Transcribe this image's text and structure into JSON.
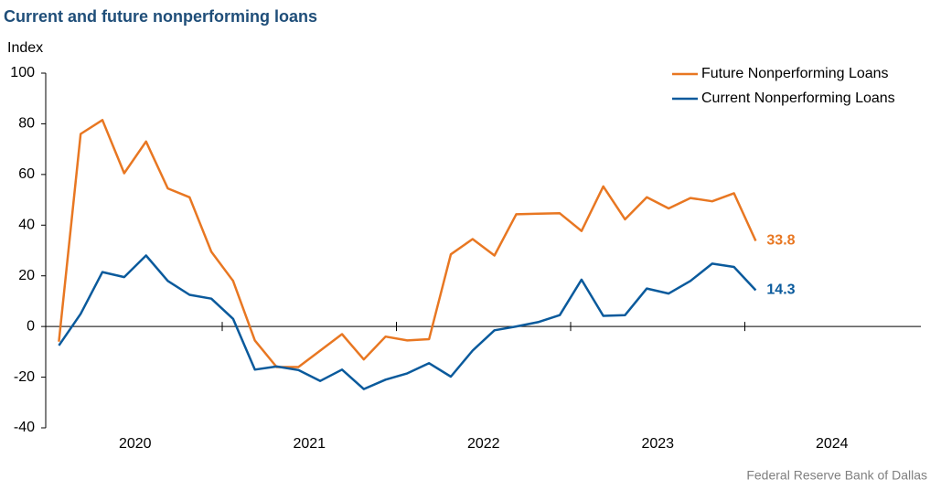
{
  "chart_data": {
    "type": "line",
    "title": "Current and future nonperforming loans",
    "y_label": "Index",
    "source": "Federal Reserve Bank of Dallas",
    "legend": "top-right",
    "x": [
      2020.0625,
      2020.1875,
      2020.3125,
      2020.4375,
      2020.5625,
      2020.6875,
      2020.8125,
      2020.9375,
      2021.0625,
      2021.1875,
      2021.3125,
      2021.4375,
      2021.5625,
      2021.6875,
      2021.8125,
      2021.9375,
      2022.0625,
      2022.1875,
      2022.3125,
      2022.4375,
      2022.5625,
      2022.6875,
      2022.8125,
      2022.9375,
      2023.0625,
      2023.1875,
      2023.3125,
      2023.4375,
      2023.5625,
      2023.6875,
      2023.8125,
      2023.9375,
      2024.0625
    ],
    "series": [
      {
        "name": "Future Nonperforming Loans",
        "color": "#e87722",
        "values": [
          -6,
          76,
          81.5,
          60.5,
          73,
          54.5,
          51,
          29.5,
          18,
          -5.5,
          -16,
          -16,
          -9.5,
          -3,
          -13,
          -4,
          -5.5,
          -5,
          28.5,
          34.5,
          28,
          44.3,
          44.5,
          44.7,
          37.7,
          55.3,
          42.3,
          51,
          46.6,
          50.7,
          49.4,
          52.6,
          33.8
        ]
      },
      {
        "name": "Current Nonperforming Loans",
        "color": "#0a5a9c",
        "values": [
          -7.5,
          5,
          21.5,
          19.5,
          28,
          18,
          12.5,
          11,
          3,
          -17,
          -15.8,
          -17.2,
          -21.5,
          -17,
          -24.7,
          -21,
          -18.5,
          -14.5,
          -19.8,
          -9.5,
          -1.5,
          0,
          1.7,
          4.5,
          18.5,
          4.2,
          4.5,
          15,
          13,
          18,
          24.8,
          23.5,
          14.3
        ]
      }
    ],
    "xlim": [
      2020,
      2025
    ],
    "xticks": [
      2021,
      2022,
      2023,
      2024
    ],
    "xtick_labels": [
      {
        "value": 2020.5,
        "label": "2020"
      },
      {
        "value": 2021.5,
        "label": "2021"
      },
      {
        "value": 2022.5,
        "label": "2022"
      },
      {
        "value": 2023.5,
        "label": "2023"
      },
      {
        "value": 2024.5,
        "label": "2024"
      }
    ],
    "ylim": [
      -40,
      100
    ],
    "yticks": [
      -40,
      -20,
      0,
      20,
      40,
      60,
      80,
      100
    ]
  }
}
